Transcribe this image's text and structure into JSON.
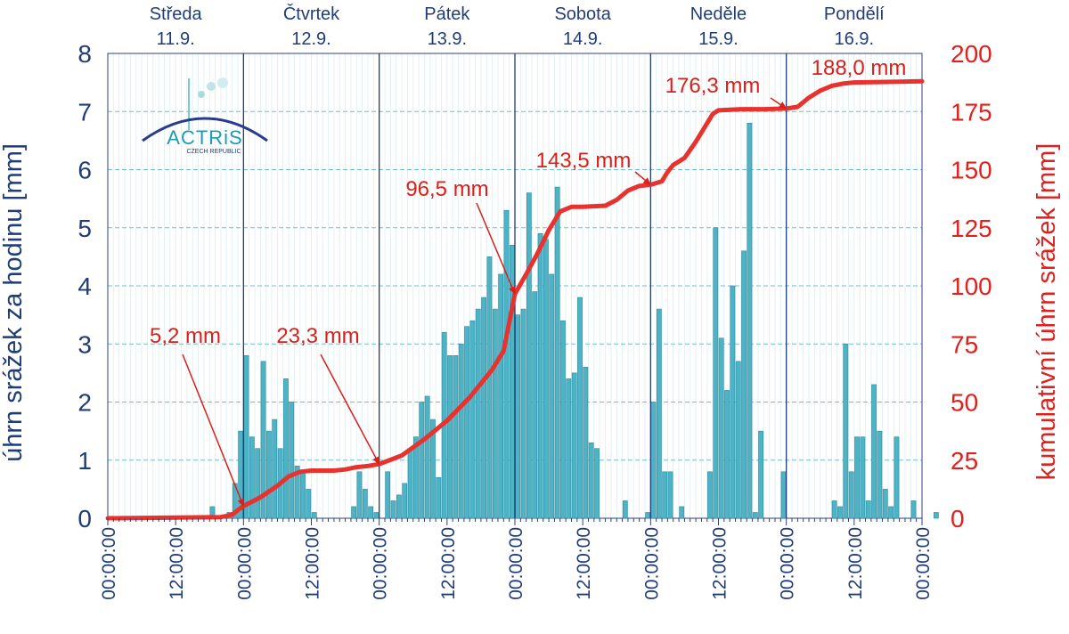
{
  "chart_data": {
    "type": "bar+line",
    "y_left": {
      "label": "úhrn srážek za hodinu [mm]",
      "min": 0,
      "max": 8,
      "ticks": [
        "0",
        "1",
        "2",
        "3",
        "4",
        "5",
        "6",
        "7",
        "8"
      ]
    },
    "y_right": {
      "label": "kumulativní úhrn srážek [mm]",
      "min": 0,
      "max": 200,
      "ticks": [
        "0",
        "25",
        "50",
        "75",
        "100",
        "125",
        "150",
        "175",
        "200"
      ]
    },
    "x": {
      "start": "2024-09-11 00:00",
      "end": "2024-09-17 00:00",
      "tick_every_hours": 12,
      "tick_label": "00:00:00",
      "ticks": [
        "00:00:00",
        "12:00:00",
        "00:00:00",
        "12:00:00",
        "00:00:00",
        "12:00:00",
        "00:00:00",
        "12:00:00",
        "00:00:00",
        "12:00:00",
        "00:00:00",
        "12:00:00",
        "00:00:00"
      ]
    },
    "days": [
      {
        "name": "Středa",
        "date": "11.9."
      },
      {
        "name": "Čtvrtek",
        "date": "12.9."
      },
      {
        "name": "Pátek",
        "date": "13.9."
      },
      {
        "name": "Sobota",
        "date": "14.9."
      },
      {
        "name": "Neděle",
        "date": "15.9."
      },
      {
        "name": "Pondělí",
        "date": "16.9."
      }
    ],
    "hourly_mm": [
      0,
      0,
      0,
      0,
      0,
      0,
      0,
      0,
      0,
      0,
      0,
      0,
      0,
      0,
      0,
      0,
      0,
      0,
      0.2,
      0,
      0,
      0.1,
      0.6,
      1.5,
      2.8,
      1.4,
      1.2,
      2.7,
      1.5,
      1.7,
      1.2,
      2.4,
      2.0,
      0.9,
      0.8,
      0.5,
      0.1,
      0,
      0,
      0,
      0,
      0,
      0,
      0.2,
      0.8,
      0.5,
      0.2,
      0.1,
      0,
      0.8,
      0.3,
      0.4,
      0.6,
      1.2,
      1.4,
      2.0,
      2.1,
      1.7,
      0.7,
      3.2,
      2.8,
      2.8,
      3.0,
      3.3,
      3.4,
      3.6,
      3.8,
      4.5,
      3.6,
      4.2,
      5.3,
      4.7,
      3.5,
      3.6,
      5.6,
      3.9,
      4.9,
      4.8,
      4.2,
      5.7,
      3.4,
      2.4,
      2.5,
      3.8,
      2.6,
      1.3,
      1.2,
      0,
      0,
      0,
      0,
      0.3,
      0,
      0,
      0,
      0.1,
      2.0,
      3.6,
      0.8,
      0.8,
      0,
      0.2,
      0,
      0,
      0,
      0,
      0.8,
      5.0,
      3.1,
      2.2,
      4.0,
      2.7,
      4.6,
      6.8,
      0.1,
      1.5,
      0,
      0,
      0,
      0.8,
      0,
      0,
      0,
      0,
      0,
      0,
      0,
      0,
      0.3,
      0.2,
      3.0,
      0.8,
      1.4,
      1.4,
      0.3,
      2.3,
      1.5,
      0.5,
      0.2,
      1.4,
      0,
      0,
      0.3,
      0,
      0,
      0,
      0.1,
      0,
      0,
      0,
      0,
      0,
      0,
      0,
      0,
      0,
      0,
      0,
      0,
      0,
      0,
      0,
      0,
      0,
      0,
      0,
      0,
      0
    ],
    "cumulative_mm": [
      [
        0,
        0
      ],
      [
        20,
        0.5
      ],
      [
        22,
        1.5
      ],
      [
        23,
        3.5
      ],
      [
        24,
        5.2
      ],
      [
        27,
        9
      ],
      [
        30,
        14
      ],
      [
        32,
        18
      ],
      [
        34,
        20
      ],
      [
        36,
        20.5
      ],
      [
        40,
        20.5
      ],
      [
        42,
        21
      ],
      [
        44,
        22
      ],
      [
        46,
        22.5
      ],
      [
        48,
        23.3
      ],
      [
        52,
        27
      ],
      [
        56,
        34
      ],
      [
        60,
        42
      ],
      [
        64,
        52
      ],
      [
        68,
        64
      ],
      [
        70,
        72
      ],
      [
        72,
        96.5
      ],
      [
        74,
        105
      ],
      [
        76,
        114
      ],
      [
        78,
        124
      ],
      [
        80,
        132
      ],
      [
        82,
        134
      ],
      [
        84,
        134
      ],
      [
        88,
        134.5
      ],
      [
        90,
        137
      ],
      [
        92,
        141
      ],
      [
        94,
        143
      ],
      [
        96,
        143.5
      ],
      [
        98,
        145
      ],
      [
        99,
        149
      ],
      [
        100,
        152
      ],
      [
        102,
        155
      ],
      [
        104,
        162
      ],
      [
        106,
        170
      ],
      [
        107,
        174
      ],
      [
        108,
        175.5
      ],
      [
        112,
        176
      ],
      [
        116,
        176
      ],
      [
        120,
        176.3
      ],
      [
        122,
        177
      ],
      [
        124,
        181
      ],
      [
        126,
        184
      ],
      [
        128,
        186
      ],
      [
        130,
        187
      ],
      [
        132,
        187.5
      ],
      [
        144,
        188
      ]
    ],
    "annotations": [
      {
        "text": "5,2 mm",
        "x_hour": 24,
        "y_mm": 5.2
      },
      {
        "text": "23,3 mm",
        "x_hour": 48,
        "y_mm": 23.3
      },
      {
        "text": "96,5 mm",
        "x_hour": 72,
        "y_mm": 96.5
      },
      {
        "text": "143,5 mm",
        "x_hour": 96,
        "y_mm": 143.5
      },
      {
        "text": "176,3 mm",
        "x_hour": 120,
        "y_mm": 176.3
      },
      {
        "text": "188,0 mm",
        "x_hour": 134,
        "y_mm": 188
      }
    ],
    "colors": {
      "bar": "#4fb3c6",
      "bar_edge": "#2b8aa0",
      "line": "#e8322d",
      "left_axis": "#1f3d7a",
      "right_axis": "#e0201c",
      "grid": "#67c3d0",
      "annotation": "#d9201b"
    }
  },
  "logo": {
    "text": "ACTRiS",
    "subtitle": "CZECH REPUBLIC"
  }
}
